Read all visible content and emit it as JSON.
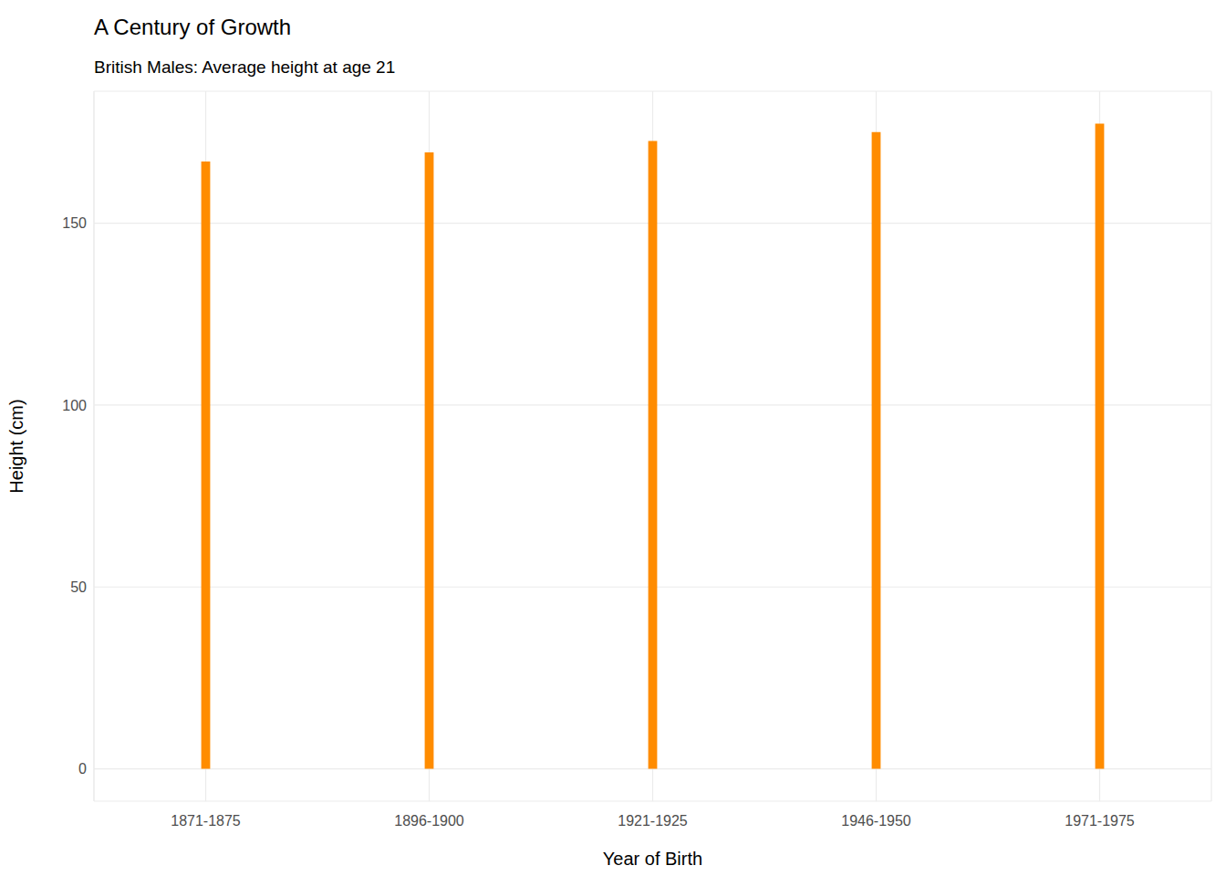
{
  "chart_data": {
    "type": "bar",
    "title": "A Century of Growth",
    "subtitle": "British Males: Average height at age 21",
    "x_label": "Year of Birth",
    "y_label": "Height (cm)",
    "categories": [
      "1871-1875",
      "1896-1900",
      "1921-1925",
      "1946-1950",
      "1971-1975"
    ],
    "values": [
      167.0,
      169.5,
      172.6,
      175.1,
      177.4
    ],
    "color": "#ff8c00",
    "ylim": [
      -8.9,
      186.3
    ],
    "yticks": [
      0,
      50,
      100,
      150
    ],
    "grid": true
  }
}
